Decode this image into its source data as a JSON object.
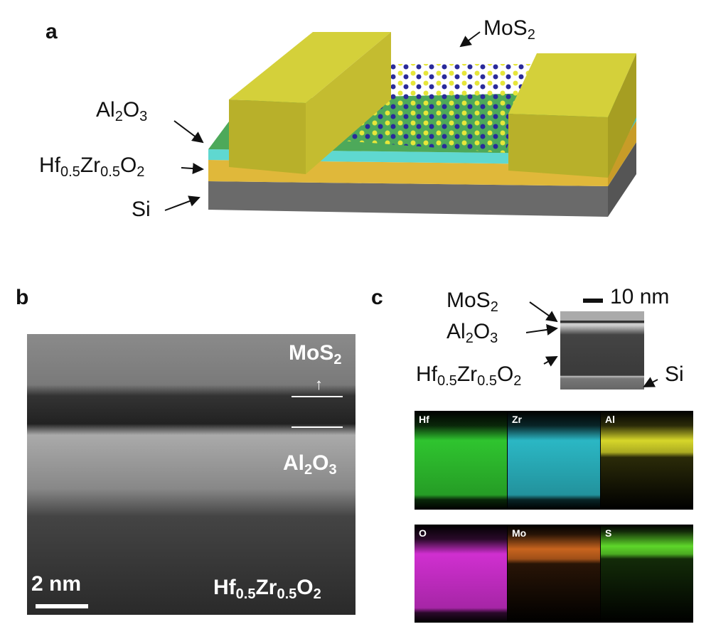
{
  "panels": {
    "a": "a",
    "b": "b",
    "c": "c"
  },
  "panel_a": {
    "mos2": {
      "base": "MoS",
      "sub": "2"
    },
    "al2o3": {
      "b1": "Al",
      "s1": "2",
      "b2": "O",
      "s2": "3"
    },
    "hzo": {
      "b1": "Hf",
      "s1": "0.5",
      "b2": "Zr",
      "s2": "0.5",
      "b3": "O",
      "s3": "2"
    },
    "si": "Si"
  },
  "panel_b": {
    "mos2": {
      "base": "MoS",
      "sub": "2"
    },
    "al2o3": {
      "b1": "Al",
      "s1": "2",
      "b2": "O",
      "s2": "3"
    },
    "hzo": {
      "b1": "Hf",
      "s1": "0.5",
      "b2": "Zr",
      "s2": "0.5",
      "b3": "O",
      "s3": "2"
    },
    "scale": "2 nm"
  },
  "panel_c": {
    "scale": "10 nm",
    "mos2": {
      "base": "MoS",
      "sub": "2"
    },
    "al2o3": {
      "b1": "Al",
      "s1": "2",
      "b2": "O",
      "s2": "3"
    },
    "hzo": {
      "b1": "Hf",
      "s1": "0.5",
      "b2": "Zr",
      "s2": "0.5",
      "b3": "O",
      "s3": "2"
    },
    "si": "Si",
    "maps": [
      {
        "label": "Hf",
        "color": "#2fc42f"
      },
      {
        "label": "Zr",
        "color": "#2bb7c4"
      },
      {
        "label": "Al",
        "color": "#d6d62a"
      },
      {
        "label": "O",
        "color": "#d02fd0"
      },
      {
        "label": "Mo",
        "color": "#c8641e"
      },
      {
        "label": "S",
        "color": "#5ed62a"
      }
    ]
  }
}
